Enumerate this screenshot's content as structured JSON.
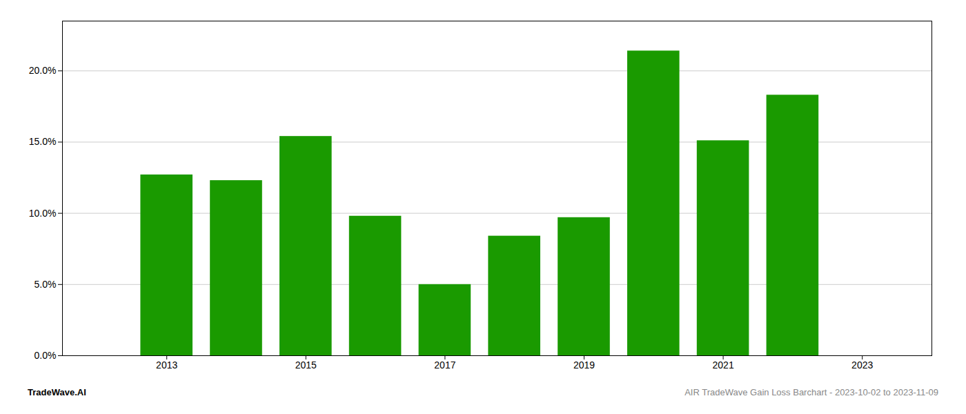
{
  "chart_data": {
    "type": "bar",
    "x": [
      2013,
      2014,
      2015,
      2016,
      2017,
      2018,
      2019,
      2020,
      2021,
      2022
    ],
    "values": [
      0.127,
      0.123,
      0.154,
      0.098,
      0.05,
      0.084,
      0.097,
      0.214,
      0.151,
      0.183
    ],
    "color": "#1a9a00",
    "xlim": [
      2011.5,
      2024.0
    ],
    "xticks": [
      2013,
      2015,
      2017,
      2019,
      2021,
      2023
    ],
    "ylim": [
      0,
      0.235
    ],
    "yticks": [
      {
        "value": 0.0,
        "label": "0.0%"
      },
      {
        "value": 0.05,
        "label": "5.0%"
      },
      {
        "value": 0.1,
        "label": "10.0%"
      },
      {
        "value": 0.15,
        "label": "15.0%"
      },
      {
        "value": 0.2,
        "label": "20.0%"
      }
    ],
    "grid": true,
    "annotations": [
      "TradeWave.AI",
      "AIR TradeWave Gain Loss Barchart - 2023-10-02 to 2023-11-09"
    ]
  }
}
